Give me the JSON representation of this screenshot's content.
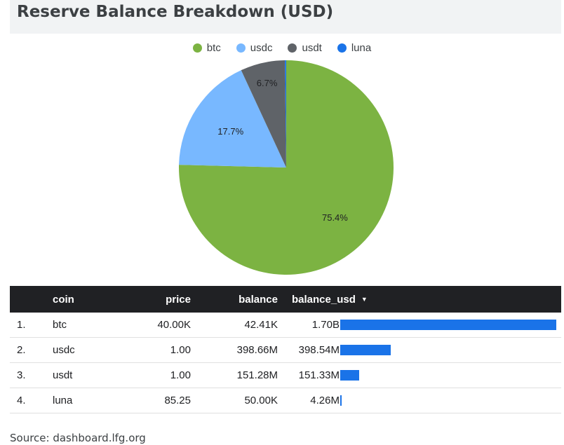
{
  "title": "Reserve Balance Breakdown (USD)",
  "colors": {
    "btc": "#7cb342",
    "usdc": "#78b8ff",
    "usdt": "#5f6368",
    "luna": "#1a73e8"
  },
  "chart_data": [
    {
      "type": "pie",
      "title": "Reserve Balance Breakdown (USD)",
      "legend_position": "top",
      "slices": [
        {
          "label": "btc",
          "value": 75.4,
          "display": "75.4%"
        },
        {
          "label": "usdc",
          "value": 17.7,
          "display": "17.7%"
        },
        {
          "label": "usdt",
          "value": 6.7,
          "display": "6.7%"
        },
        {
          "label": "luna",
          "value": 0.2,
          "display": ""
        }
      ]
    },
    {
      "type": "table",
      "columns": [
        "coin",
        "price",
        "balance",
        "balance_usd"
      ],
      "rows": [
        {
          "idx": "1.",
          "coin": "btc",
          "price": "40.00K",
          "balance": "42.41K",
          "balance_usd": "1.70B",
          "balance_usd_value": 1700
        },
        {
          "idx": "2.",
          "coin": "usdc",
          "price": "1.00",
          "balance": "398.66M",
          "balance_usd": "398.54M",
          "balance_usd_value": 398.54
        },
        {
          "idx": "3.",
          "coin": "usdt",
          "price": "1.00",
          "balance": "151.28M",
          "balance_usd": "151.33M",
          "balance_usd_value": 151.33
        },
        {
          "idx": "4.",
          "coin": "luna",
          "price": "85.25",
          "balance": "50.00K",
          "balance_usd": "4.26M",
          "balance_usd_value": 4.26
        }
      ]
    }
  ],
  "table": {
    "sort_icon": "sort-desc-icon"
  },
  "source": "Source: dashboard.lfg.org"
}
